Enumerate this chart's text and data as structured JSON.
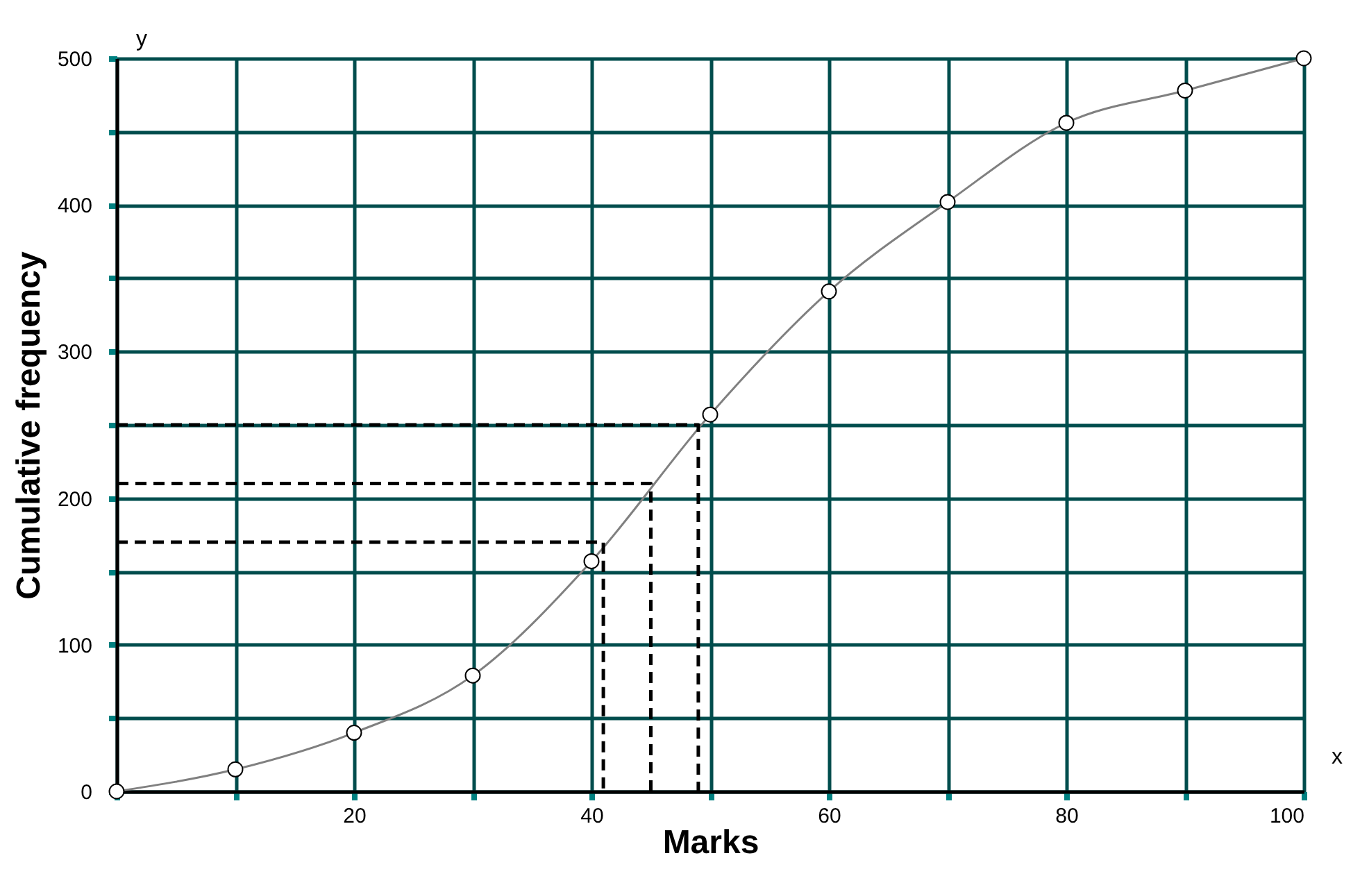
{
  "chart_data": {
    "type": "line",
    "xlabel": "Marks",
    "ylabel": "Cumulative frequency",
    "annotations": [
      "x",
      "y"
    ],
    "xlim": [
      0,
      100
    ],
    "ylim": [
      0,
      500
    ],
    "xticks": [
      {
        "value": 0,
        "label": null
      },
      {
        "value": 10,
        "label": null
      },
      20,
      {
        "value": 30,
        "label": null
      },
      40,
      {
        "value": 50,
        "label": null
      },
      60,
      {
        "value": 70,
        "label": null
      },
      80,
      {
        "value": 90,
        "label": null
      },
      100
    ],
    "yticks": [
      0,
      {
        "value": 50,
        "label": null
      },
      100,
      {
        "value": 150,
        "label": null
      },
      200,
      {
        "value": 250,
        "label": null
      },
      300,
      {
        "value": 350,
        "label": null
      },
      400,
      {
        "value": 450,
        "label": null
      },
      500
    ],
    "grid": true,
    "marker": "circle",
    "series": [
      {
        "x": [
          0,
          10,
          20,
          30,
          40,
          50,
          60,
          70,
          80,
          90,
          100
        ],
        "values": [
          0,
          15,
          40,
          79,
          157,
          257,
          341,
          402,
          456,
          478,
          500
        ],
        "color": "#808080"
      },
      {
        "x": [
          0,
          49,
          49
        ],
        "values": [
          250,
          250,
          0
        ],
        "color": "#000000",
        "line_style": "dashed",
        "marker": "none"
      },
      {
        "x": [
          45,
          45,
          0
        ],
        "values": [
          0,
          210,
          210
        ],
        "color": "#000000",
        "line_style": "dashed",
        "marker": "none"
      },
      {
        "x": [
          0,
          41,
          41
        ],
        "values": [
          170,
          170,
          0
        ],
        "color": "#000000",
        "line_style": "dashed",
        "marker": "none"
      }
    ]
  }
}
